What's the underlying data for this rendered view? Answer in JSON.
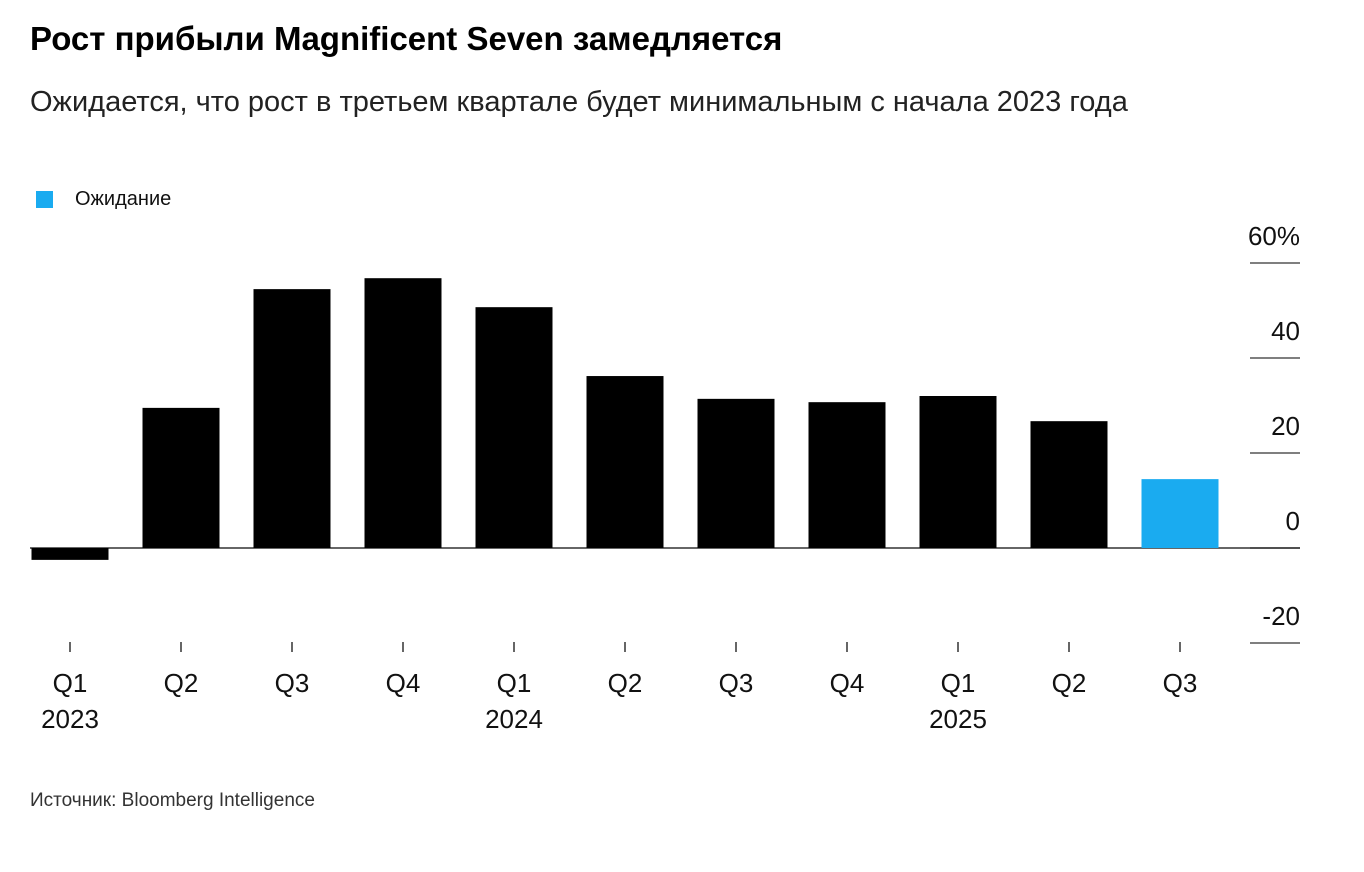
{
  "chart_data": {
    "type": "bar",
    "title": "Рост прибыли Magnificent Seven замедляется",
    "subtitle": "Ожидается, что рост в третьем квартале будет минимальным с начала 2023 года",
    "legend": {
      "label": "Ожидание",
      "color": "#1aabf0"
    },
    "categories": [
      "Q1",
      "Q2",
      "Q3",
      "Q4",
      "Q1",
      "Q2",
      "Q3",
      "Q4",
      "Q1",
      "Q2",
      "Q3"
    ],
    "year_labels": [
      "2023",
      null,
      null,
      null,
      "2024",
      null,
      null,
      null,
      "2025",
      null,
      null
    ],
    "values": [
      -2.5,
      29.5,
      54.5,
      56.8,
      50.7,
      36.2,
      31.4,
      30.7,
      32,
      26.7,
      14.5
    ],
    "colors": [
      "#000000",
      "#000000",
      "#000000",
      "#000000",
      "#000000",
      "#000000",
      "#000000",
      "#000000",
      "#000000",
      "#000000",
      "#1aabf0"
    ],
    "ylim": [
      -20,
      60
    ],
    "yticks": [
      -20,
      0,
      20,
      40,
      {
        "value": 60,
        "label": "60%"
      }
    ],
    "source": "Источник: Bloomberg Intelligence"
  }
}
